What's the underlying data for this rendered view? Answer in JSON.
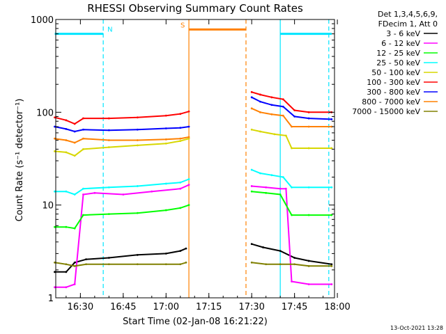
{
  "chart_data": {
    "type": "line",
    "title": "RHESSI Observing Summary Count Rates",
    "xlabel": "Start Time (02-Jan-08 16:21:22)",
    "ylabel": "Count Rate (s⁻¹ detector⁻¹)",
    "yscale": "log",
    "ylim": [
      1,
      1000
    ],
    "xlim": [
      "16:21:22",
      "17:59:00"
    ],
    "x_ticks": [
      "16:30",
      "16:45",
      "17:00",
      "17:15",
      "17:30",
      "17:45",
      "18:00"
    ],
    "y_ticks": [
      "1",
      "10",
      "100",
      "1000"
    ],
    "legend_header": [
      "Det 1,3,4,5,6,9,",
      "FDecim 1, Att 0"
    ],
    "legend_position": "right",
    "timestamp": "13-Oct-2021 13:28",
    "data_gap": [
      "17:08",
      "17:29"
    ],
    "series": [
      {
        "name": "3 - 6 keV",
        "color": "#000000",
        "x": [
          "16:21",
          "16:25",
          "16:28",
          "16:32",
          "16:40",
          "16:50",
          "17:00",
          "17:05",
          "17:07",
          "17:30",
          "17:34",
          "17:40",
          "17:45",
          "17:50",
          "17:58"
        ],
        "y": [
          1.9,
          1.9,
          2.4,
          2.6,
          2.7,
          2.9,
          3.0,
          3.2,
          3.4,
          3.8,
          3.5,
          3.2,
          2.7,
          2.5,
          2.3
        ]
      },
      {
        "name": "6 - 12 keV",
        "color": "#ff00ff",
        "x": [
          "16:21",
          "16:25",
          "16:28",
          "16:31",
          "16:35",
          "16:45",
          "16:55",
          "17:05",
          "17:08",
          "17:30",
          "17:35",
          "17:40",
          "17:42",
          "17:44",
          "17:50",
          "17:58"
        ],
        "y": [
          1.3,
          1.3,
          1.4,
          13.0,
          13.5,
          13.0,
          14.0,
          15.0,
          16.5,
          16.0,
          15.5,
          15.0,
          15.0,
          1.5,
          1.4,
          1.4
        ]
      },
      {
        "name": "12 - 25 keV",
        "color": "#00ff00",
        "x": [
          "16:21",
          "16:25",
          "16:28",
          "16:31",
          "16:40",
          "16:50",
          "17:00",
          "17:05",
          "17:08",
          "17:30",
          "17:35",
          "17:40",
          "17:44",
          "17:50",
          "17:58"
        ],
        "y": [
          5.8,
          5.8,
          5.6,
          7.8,
          8.0,
          8.2,
          8.8,
          9.3,
          10.0,
          14.0,
          13.5,
          13.0,
          7.8,
          7.8,
          7.8
        ]
      },
      {
        "name": "25 - 50 keV",
        "color": "#00ffff",
        "x": [
          "16:21",
          "16:25",
          "16:28",
          "16:31",
          "16:40",
          "16:50",
          "17:00",
          "17:05",
          "17:08",
          "17:30",
          "17:33",
          "17:37",
          "17:41",
          "17:44",
          "17:50",
          "17:58"
        ],
        "y": [
          14.0,
          14.0,
          13.0,
          15.0,
          15.5,
          16.0,
          17.0,
          17.5,
          19.0,
          24.0,
          22.0,
          21.0,
          20.0,
          15.5,
          15.5,
          15.5
        ]
      },
      {
        "name": "50 - 100 keV",
        "color": "#d7d700",
        "x": [
          "16:21",
          "16:25",
          "16:28",
          "16:31",
          "16:40",
          "16:50",
          "17:00",
          "17:05",
          "17:08",
          "17:30",
          "17:33",
          "17:38",
          "17:42",
          "17:44",
          "17:50",
          "17:58"
        ],
        "y": [
          38,
          37,
          34,
          40,
          42,
          44,
          46,
          49,
          52,
          65,
          62,
          58,
          56,
          41,
          41,
          41
        ]
      },
      {
        "name": "100 - 300 keV",
        "color": "#ff0000",
        "x": [
          "16:21",
          "16:25",
          "16:28",
          "16:31",
          "16:40",
          "16:50",
          "17:00",
          "17:05",
          "17:08",
          "17:30",
          "17:33",
          "17:37",
          "17:41",
          "17:45",
          "17:50",
          "17:58"
        ],
        "y": [
          88,
          82,
          75,
          86,
          86,
          88,
          92,
          96,
          102,
          165,
          155,
          145,
          138,
          105,
          100,
          100
        ]
      },
      {
        "name": "300 - 800 keV",
        "color": "#0000ff",
        "x": [
          "16:21",
          "16:25",
          "16:28",
          "16:31",
          "16:40",
          "16:50",
          "17:00",
          "17:05",
          "17:08",
          "17:30",
          "17:33",
          "17:37",
          "17:41",
          "17:45",
          "17:50",
          "17:58"
        ],
        "y": [
          70,
          66,
          62,
          65,
          64,
          65,
          67,
          68,
          70,
          145,
          130,
          120,
          115,
          90,
          86,
          84
        ]
      },
      {
        "name": "800 - 7000 keV",
        "color": "#ff8000",
        "x": [
          "16:21",
          "16:25",
          "16:28",
          "16:31",
          "16:40",
          "16:50",
          "17:00",
          "17:05",
          "17:08",
          "17:30",
          "17:33",
          "17:37",
          "17:41",
          "17:44",
          "17:50",
          "17:58"
        ],
        "y": [
          52,
          50,
          47,
          52,
          50,
          50,
          51,
          52,
          54,
          110,
          100,
          95,
          92,
          70,
          70,
          70
        ]
      },
      {
        "name": "7000 - 15000 keV",
        "color": "#808000",
        "x": [
          "16:21",
          "16:25",
          "16:28",
          "16:32",
          "16:40",
          "16:50",
          "17:00",
          "17:05",
          "17:07",
          "17:30",
          "17:35",
          "17:40",
          "17:45",
          "17:50",
          "17:58"
        ],
        "y": [
          2.4,
          2.3,
          2.2,
          2.3,
          2.3,
          2.3,
          2.3,
          2.3,
          2.4,
          2.4,
          2.3,
          2.3,
          2.3,
          2.2,
          2.2
        ]
      }
    ],
    "flag_bars": [
      {
        "label": "N",
        "color": "#00e5ff",
        "segments": [
          [
            "16:21",
            "16:38"
          ],
          [
            "17:40",
            "17:58"
          ]
        ],
        "level": 700
      },
      {
        "label": "S",
        "color": "#ff8000",
        "segments": [
          [
            "17:08",
            "17:28"
          ]
        ],
        "level": 780
      }
    ],
    "vertical_markers": [
      {
        "time": "16:38",
        "color": "#00e5ff",
        "style": "dashed"
      },
      {
        "time": "17:57",
        "color": "#00e5ff",
        "style": "dashed"
      },
      {
        "time": "17:40",
        "color": "#00e5ff",
        "style": "solid"
      },
      {
        "time": "17:08",
        "color": "#ff8000",
        "style": "solid"
      },
      {
        "time": "17:28",
        "color": "#ff8000",
        "style": "dashed"
      }
    ]
  }
}
